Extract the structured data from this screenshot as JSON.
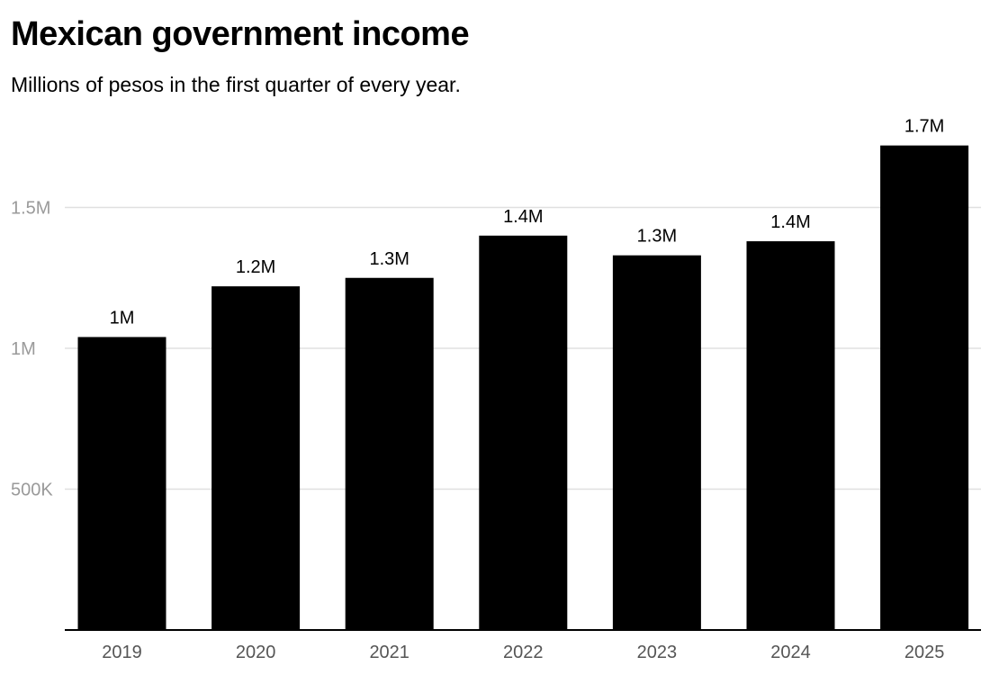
{
  "chart_data": {
    "type": "bar",
    "title": "Mexican government income",
    "subtitle": "Millions of pesos in the first quarter of every year.",
    "xlabel": "",
    "ylabel": "",
    "categories": [
      "2019",
      "2020",
      "2021",
      "2022",
      "2023",
      "2024",
      "2025"
    ],
    "values": [
      1040000,
      1220000,
      1250000,
      1400000,
      1330000,
      1380000,
      1720000
    ],
    "data_labels": [
      "1M",
      "1.2M",
      "1.3M",
      "1.4M",
      "1.3M",
      "1.4M",
      "1.7M"
    ],
    "ylim": [
      0,
      1800000
    ],
    "y_ticks": [
      {
        "value": 500000,
        "label": "500K"
      },
      {
        "value": 1000000,
        "label": "1M"
      },
      {
        "value": 1500000,
        "label": "1.5M"
      }
    ],
    "grid": true,
    "legend": "none",
    "colors": {
      "bar": "#000000",
      "gridline": "#e0e0e0",
      "axis": "#000000"
    }
  }
}
